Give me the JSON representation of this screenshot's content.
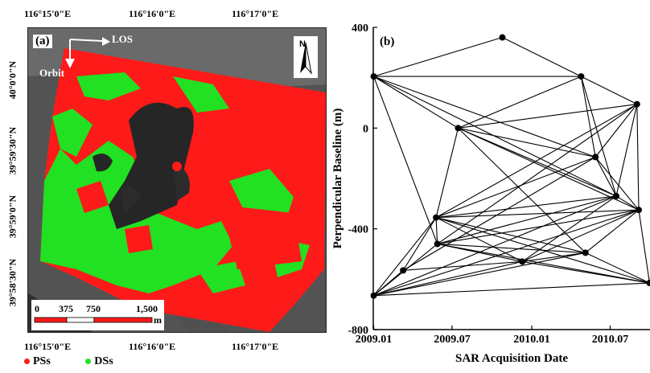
{
  "map_panel": {
    "label": "(a)",
    "lon_labels_top": [
      "116°15'0\"E",
      "116°16'0\"E",
      "116°17'0\"E"
    ],
    "lon_labels_bottom": [
      "116°15'0\"E",
      "116°16'0\"E",
      "116°17'0\"E"
    ],
    "lat_labels": [
      "40°0'0\"N",
      "39°59'30\"N",
      "39°59'0\"N",
      "39°58'30\"N"
    ],
    "los_label": "LOS",
    "orbit_label": "Orbit",
    "north_label": "N",
    "scale": {
      "ticks": [
        "0",
        "375",
        "750",
        "1,500"
      ],
      "unit": "m"
    },
    "legend": [
      {
        "label": "PSs",
        "color": "#ff1a1a"
      },
      {
        "label": "DSs",
        "color": "#22e022"
      }
    ]
  },
  "chart_data": {
    "type": "line",
    "title": "(b)",
    "xlabel": "SAR Acquisition Date",
    "ylabel": "Perpendicular Baseline (m)",
    "x_ticks": [
      "2009.01",
      "2009.07",
      "2010.01",
      "2010.07"
    ],
    "y_ticks": [
      "400",
      "0",
      "-400",
      "-800"
    ],
    "xlim": [
      "2008-12-31",
      "2010-10-01"
    ],
    "ylim": [
      -800,
      400
    ],
    "nodes": [
      {
        "date": "2009-01-01",
        "baseline": 205
      },
      {
        "date": "2009-01-01",
        "baseline": -665
      },
      {
        "date": "2009-03-10",
        "baseline": -565
      },
      {
        "date": "2009-05-25",
        "baseline": -355
      },
      {
        "date": "2009-05-28",
        "baseline": -460
      },
      {
        "date": "2009-07-15",
        "baseline": 0
      },
      {
        "date": "2009-10-25",
        "baseline": 360
      },
      {
        "date": "2009-12-10",
        "baseline": -530
      },
      {
        "date": "2010-04-25",
        "baseline": 205
      },
      {
        "date": "2010-05-05",
        "baseline": -495
      },
      {
        "date": "2010-05-28",
        "baseline": -115
      },
      {
        "date": "2010-07-15",
        "baseline": -270
      },
      {
        "date": "2010-09-01",
        "baseline": 95
      },
      {
        "date": "2010-09-05",
        "baseline": -325
      },
      {
        "date": "2010-09-30",
        "baseline": -615
      }
    ],
    "edges": [
      [
        0,
        6
      ],
      [
        6,
        8
      ],
      [
        0,
        8
      ],
      [
        0,
        5
      ],
      [
        0,
        10
      ],
      [
        0,
        11
      ],
      [
        5,
        8
      ],
      [
        5,
        10
      ],
      [
        5,
        12
      ],
      [
        5,
        11
      ],
      [
        5,
        13
      ],
      [
        5,
        9
      ],
      [
        8,
        12
      ],
      [
        8,
        10
      ],
      [
        8,
        11
      ],
      [
        10,
        11
      ],
      [
        10,
        13
      ],
      [
        10,
        12
      ],
      [
        10,
        3
      ],
      [
        10,
        2
      ],
      [
        11,
        3
      ],
      [
        11,
        12
      ],
      [
        11,
        13
      ],
      [
        11,
        4
      ],
      [
        11,
        1
      ],
      [
        11,
        7
      ],
      [
        12,
        13
      ],
      [
        12,
        3
      ],
      [
        12,
        4
      ],
      [
        13,
        3
      ],
      [
        13,
        4
      ],
      [
        13,
        9
      ],
      [
        13,
        7
      ],
      [
        13,
        1
      ],
      [
        13,
        14
      ],
      [
        9,
        4
      ],
      [
        9,
        3
      ],
      [
        9,
        7
      ],
      [
        9,
        14
      ],
      [
        9,
        1
      ],
      [
        3,
        4
      ],
      [
        3,
        2
      ],
      [
        3,
        1
      ],
      [
        3,
        7
      ],
      [
        4,
        1
      ],
      [
        4,
        7
      ],
      [
        4,
        14
      ],
      [
        2,
        1
      ],
      [
        2,
        7
      ],
      [
        7,
        14
      ],
      [
        1,
        14
      ],
      [
        1,
        7
      ],
      [
        3,
        14
      ],
      [
        5,
        3
      ],
      [
        0,
        4
      ]
    ]
  }
}
